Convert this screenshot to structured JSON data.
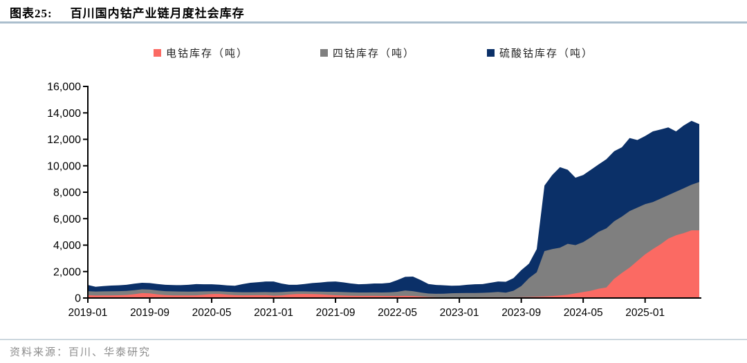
{
  "title": {
    "label": "图表25:",
    "text": "百川国内钴产业链月度社会库存"
  },
  "source": "资料来源：百川、华泰研究",
  "colors": {
    "electro_cobalt": "#fb6a63",
    "tetra_cobalt": "#7f7f7f",
    "cobalt_sulfate": "#0b3068",
    "axis": "#000000",
    "title_rule": "#abbecd",
    "footer_rule": "#ccd7de",
    "source_text": "#8c8c8c"
  },
  "chart_data": {
    "type": "area",
    "stacked": true,
    "grid": false,
    "legend_position": "top",
    "ylim": [
      0,
      16000
    ],
    "y_ticks": [
      0,
      2000,
      4000,
      6000,
      8000,
      10000,
      12000,
      14000,
      16000
    ],
    "y_tick_labels": [
      "0",
      "2,000",
      "4,000",
      "6,000",
      "8,000",
      "10,000",
      "12,000",
      "14,000",
      "16,000"
    ],
    "x_tick_labels": [
      "2019-01",
      "2019-09",
      "2020-05",
      "2021-01",
      "2021-09",
      "2022-05",
      "2023-01",
      "2023-09",
      "2024-05",
      "2025-01"
    ],
    "x_tick_month_index": [
      0,
      8,
      16,
      24,
      32,
      40,
      48,
      56,
      64,
      72
    ],
    "x": [
      "2019-01",
      "2019-02",
      "2019-03",
      "2019-04",
      "2019-05",
      "2019-06",
      "2019-07",
      "2019-08",
      "2019-09",
      "2019-10",
      "2019-11",
      "2019-12",
      "2020-01",
      "2020-02",
      "2020-03",
      "2020-04",
      "2020-05",
      "2020-06",
      "2020-07",
      "2020-08",
      "2020-09",
      "2020-10",
      "2020-11",
      "2020-12",
      "2021-01",
      "2021-02",
      "2021-03",
      "2021-04",
      "2021-05",
      "2021-06",
      "2021-07",
      "2021-08",
      "2021-09",
      "2021-10",
      "2021-11",
      "2021-12",
      "2022-01",
      "2022-02",
      "2022-03",
      "2022-04",
      "2022-05",
      "2022-06",
      "2022-07",
      "2022-08",
      "2022-09",
      "2022-10",
      "2022-11",
      "2022-12",
      "2023-01",
      "2023-02",
      "2023-03",
      "2023-04",
      "2023-05",
      "2023-06",
      "2023-07",
      "2023-08",
      "2023-09",
      "2023-10",
      "2023-11",
      "2023-12",
      "2024-01",
      "2024-02",
      "2024-03",
      "2024-04",
      "2024-05",
      "2024-06",
      "2024-07",
      "2024-08",
      "2024-09",
      "2024-10",
      "2024-11",
      "2024-12",
      "2025-01",
      "2025-02",
      "2025-03",
      "2025-04",
      "2025-05",
      "2025-06",
      "2025-07",
      "2025-08"
    ],
    "series": [
      {
        "name": "电钴库存（吨）",
        "color": "#fb6a63",
        "values": [
          210,
          190,
          195,
          200,
          210,
          230,
          290,
          370,
          350,
          270,
          220,
          200,
          195,
          195,
          205,
          250,
          300,
          310,
          255,
          215,
          205,
          210,
          215,
          220,
          180,
          200,
          260,
          300,
          310,
          300,
          280,
          240,
          210,
          190,
          170,
          160,
          160,
          160,
          155,
          150,
          150,
          160,
          150,
          120,
          80,
          60,
          50,
          50,
          50,
          50,
          50,
          55,
          60,
          60,
          55,
          60,
          70,
          80,
          100,
          120,
          150,
          200,
          250,
          350,
          450,
          550,
          700,
          800,
          1450,
          1900,
          2300,
          2800,
          3300,
          3700,
          4070,
          4490,
          4750,
          4910,
          5120,
          5120
        ]
      },
      {
        "name": "四钴库存（吨）",
        "color": "#7f7f7f",
        "values": [
          310,
          300,
          305,
          310,
          310,
          310,
          300,
          290,
          290,
          300,
          300,
          300,
          295,
          290,
          285,
          250,
          215,
          195,
          220,
          235,
          235,
          230,
          230,
          230,
          260,
          250,
          220,
          200,
          190,
          190,
          200,
          230,
          260,
          260,
          260,
          260,
          260,
          265,
          265,
          280,
          320,
          410,
          370,
          300,
          260,
          260,
          280,
          310,
          320,
          325,
          330,
          335,
          360,
          400,
          355,
          490,
          830,
          1420,
          1850,
          3430,
          3550,
          3600,
          3850,
          3650,
          3780,
          4040,
          4310,
          4470,
          4350,
          4260,
          4280,
          4040,
          3800,
          3560,
          3450,
          3290,
          3290,
          3390,
          3450,
          3650
        ]
      },
      {
        "name": "硫酸钴库存（吨）",
        "color": "#0b3068",
        "values": [
          470,
          360,
          400,
          430,
          440,
          460,
          490,
          490,
          490,
          490,
          480,
          480,
          480,
          515,
          560,
          540,
          525,
          505,
          475,
          480,
          610,
          710,
          755,
          800,
          810,
          650,
          520,
          500,
          560,
          640,
          690,
          760,
          780,
          730,
          670,
          620,
          640,
          675,
          680,
          720,
          890,
          1030,
          1100,
          940,
          720,
          670,
          630,
          570,
          570,
          625,
          660,
          660,
          730,
          790,
          820,
          950,
          1200,
          1100,
          1750,
          4950,
          5600,
          6100,
          5600,
          5100,
          5070,
          5110,
          5090,
          5230,
          5300,
          5240,
          5520,
          5110,
          5150,
          5340,
          5230,
          5120,
          4560,
          4750,
          4830,
          4380
        ]
      }
    ]
  }
}
